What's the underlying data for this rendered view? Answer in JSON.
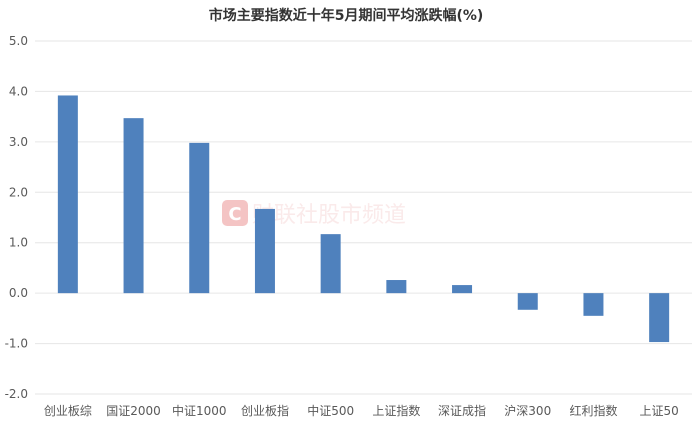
{
  "chart_data": {
    "type": "bar",
    "title": "市场主要指数近十年5月期间平均涨跌幅(%)",
    "categories": [
      "创业板综",
      "国证2000",
      "中证1000",
      "创业板指",
      "中证500",
      "上证指数",
      "深证成指",
      "沪深300",
      "红利指数",
      "上证50"
    ],
    "values": [
      3.92,
      3.47,
      2.98,
      1.67,
      1.17,
      0.26,
      0.16,
      -0.33,
      -0.45,
      -0.97
    ],
    "ylim": [
      -2.0,
      5.0
    ],
    "yticks": [
      "5.0",
      "4.0",
      "3.0",
      "2.0",
      "1.0",
      "0.0",
      "-1.0",
      "-2.0"
    ],
    "grid": true,
    "bar_color": "#4f81bd"
  },
  "watermark": {
    "logo_letter": "C",
    "text": "财联社股市频道",
    "color": "#e05a5a"
  }
}
